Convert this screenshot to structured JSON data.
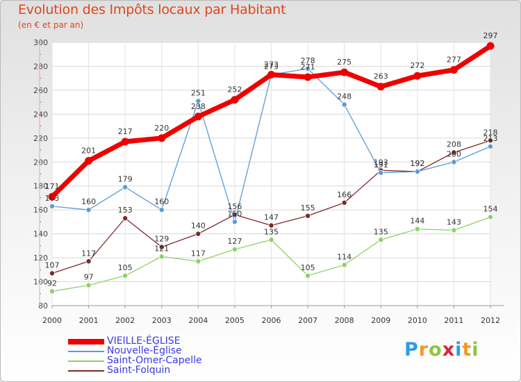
{
  "header": {
    "title": "Evolution des Impôts locaux par Habitant",
    "subtitle": "(en € et par an)"
  },
  "logo": {
    "letters": [
      "P",
      "r",
      "o",
      "x",
      "i",
      "t",
      "i"
    ],
    "colors": [
      "#2f9be0",
      "#f29a1f",
      "#8cc63f",
      "#d7263d",
      "#2f9be0",
      "#f29a1f",
      "#8cc63f"
    ]
  },
  "chart_data": {
    "type": "line",
    "title": "Evolution des Impôts locaux par Habitant",
    "subtitle": "(en € et par an)",
    "xlabel": "",
    "ylabel": "",
    "x": [
      "2000",
      "2001",
      "2002",
      "2003",
      "2004",
      "2005",
      "2006",
      "2007",
      "2008",
      "2009",
      "2010",
      "2011",
      "2012"
    ],
    "ylim": [
      80,
      300
    ],
    "yticks": [
      80,
      100,
      120,
      140,
      160,
      180,
      200,
      220,
      240,
      260,
      280,
      300
    ],
    "grid": true,
    "legend_position": "bottom-left",
    "series": [
      {
        "name": "VIEILLE-ÉGLISE",
        "color": "#ee0000",
        "values": [
          171,
          201,
          217,
          220,
          238,
          252,
          273,
          271,
          275,
          263,
          272,
          277,
          297
        ],
        "labels": [
          "171",
          "201",
          "217",
          "220",
          "238",
          "252",
          "273",
          "271",
          "275",
          "263",
          "272",
          "277",
          "297"
        ]
      },
      {
        "name": "Nouvelle-Église",
        "color": "#5b9bd5",
        "values": [
          163,
          160,
          179,
          160,
          251,
          150,
          273,
          278,
          248,
          191,
          192,
          200,
          213
        ],
        "labels": [
          "163",
          "160",
          "179",
          "160",
          "251",
          "150",
          "273",
          "278",
          "248",
          "191",
          "192",
          "200",
          "213"
        ]
      },
      {
        "name": "Saint-Omer-Capelle",
        "color": "#8ed06a",
        "values": [
          92,
          97,
          105,
          121,
          117,
          127,
          135,
          105,
          114,
          135,
          144,
          143,
          154
        ],
        "labels": [
          "92",
          "97",
          "105",
          "121",
          "117",
          "127",
          "135",
          "105",
          "114",
          "135",
          "144",
          "143",
          "154"
        ]
      },
      {
        "name": "Saint-Folquin",
        "color": "#7a2a2a",
        "values": [
          107,
          117,
          153,
          129,
          140,
          156,
          147,
          155,
          166,
          193,
          192,
          208,
          218
        ],
        "labels": [
          "107",
          "117",
          "153",
          "129",
          "140",
          "156",
          "147",
          "155",
          "166",
          "193",
          "192",
          "208",
          "218"
        ]
      }
    ]
  }
}
